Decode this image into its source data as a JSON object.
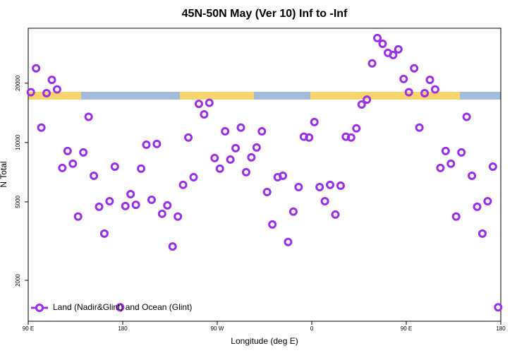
{
  "chart_data": {
    "type": "scatter",
    "title": "45N-50N May (Ver 10)   Inf to -Inf",
    "x_label": "Longitude (deg E)",
    "y_label": "N Total",
    "log_y": true,
    "legend": "bottom-left",
    "xlim": [
      90,
      540
    ],
    "ylim": [
      1240,
      38000
    ],
    "xticks": [
      {
        "value": 90,
        "label": "90 E"
      },
      {
        "value": 180,
        "label": "180"
      },
      {
        "value": 270,
        "label": "90 W"
      },
      {
        "value": 360,
        "label": "0"
      },
      {
        "value": 450,
        "label": "90 E"
      },
      {
        "value": 540,
        "label": "180"
      }
    ],
    "yticks": [
      2000,
      5000,
      10000,
      20000
    ],
    "series": [
      {
        "name": "Land (Nadir&Glint) and Ocean (Glint)",
        "color": "#9b30e8",
        "x": [
          92.5,
          97.5,
          102.5,
          107.5,
          112.5,
          117.5,
          122.5,
          127.5,
          132.5,
          137.5,
          142.5,
          147.5,
          152.5,
          157.5,
          162.5,
          167.5,
          172.5,
          177.5,
          182.5,
          187.5,
          192.5,
          197.5,
          202.5,
          207.5,
          212.5,
          217.5,
          222.5,
          227.5,
          232.5,
          237.5,
          242.5,
          247.5,
          252.5,
          257.5,
          262.5,
          267.5,
          272.5,
          277.5,
          282.5,
          287.5,
          292.5,
          297.5,
          302.5,
          307.5,
          312.5,
          317.5,
          322.5,
          327.5,
          332.5,
          337.5,
          342.5,
          347.5,
          352.5,
          357.5,
          362.5,
          367.5,
          372.5,
          377.5,
          382.5,
          387.5,
          392.5,
          397.5,
          402.5,
          407.5,
          412.5,
          417.5,
          422.5,
          427.5,
          432.5,
          437.5,
          442.5,
          447.5,
          452.5,
          457.5,
          462.5,
          467.5,
          472.5,
          477.5,
          482.5,
          487.5,
          492.5,
          497.5,
          502.5,
          507.5,
          512.5,
          517.5,
          522.5,
          527.5,
          532.5,
          537.5
        ],
        "values": [
          18000,
          23800,
          11900,
          17800,
          20800,
          18600,
          7430,
          9060,
          7810,
          4210,
          8910,
          13500,
          6780,
          4720,
          3450,
          5040,
          7550,
          1460,
          4760,
          5470,
          4830,
          7370,
          9750,
          5120,
          9840,
          4350,
          4800,
          2970,
          4210,
          6100,
          10600,
          6670,
          15700,
          13900,
          15900,
          8340,
          7370,
          11400,
          8200,
          9360,
          11900,
          7070,
          8410,
          9440,
          11400,
          5610,
          3840,
          6670,
          6780,
          3130,
          4460,
          5940,
          10700,
          10600,
          12700,
          5940,
          5040,
          6100,
          4310,
          6040,
          10700,
          10600,
          11800,
          15600,
          16500,
          25200,
          33900,
          31700,
          28500,
          27800,
          29700,
          21000,
          18000,
          23800,
          11900,
          17800,
          20800,
          18600,
          7430,
          9060,
          7810,
          4210,
          8910,
          13500,
          6780,
          4720,
          3450,
          5040,
          7550,
          1460
        ]
      }
    ]
  }
}
